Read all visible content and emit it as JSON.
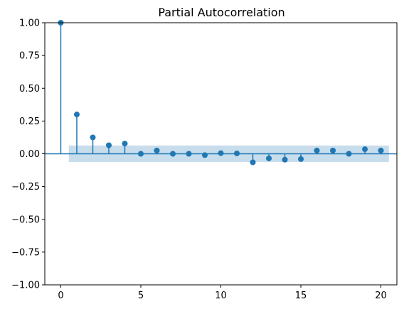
{
  "chart_data": {
    "type": "scatter",
    "subtype": "stem",
    "title": "Partial Autocorrelation",
    "xlabel": "",
    "ylabel": "",
    "xlim": [
      -0.999,
      20.999
    ],
    "ylim": [
      -1.0,
      1.0
    ],
    "grid": false,
    "x_ticks": [
      0,
      5,
      10,
      15,
      20
    ],
    "x_tick_labels": [
      "0",
      "5",
      "10",
      "15",
      "20"
    ],
    "y_ticks": [
      1.0,
      0.75,
      0.5,
      0.25,
      0.0,
      -0.25,
      -0.5,
      -0.75,
      -1.0
    ],
    "y_tick_labels": [
      "1.00",
      "0.75",
      "0.50",
      "0.25",
      "0.00",
      "−0.25",
      "−0.50",
      "−0.75",
      "−1.00"
    ],
    "confidence_band": {
      "x_range": [
        0.5,
        20.5
      ],
      "y_range": [
        -0.063,
        0.063
      ],
      "color": "#1f77b4",
      "opacity": 0.25
    },
    "series": [
      {
        "x": [
          0,
          1,
          2,
          3,
          4,
          5,
          6,
          7,
          8,
          9,
          10,
          11,
          12,
          13,
          14,
          15,
          16,
          17,
          18,
          19,
          20
        ],
        "values": [
          1.0,
          0.3,
          0.125,
          0.065,
          0.078,
          0.0,
          0.025,
          0.0,
          0.0,
          -0.01,
          0.005,
          0.003,
          -0.065,
          -0.035,
          -0.045,
          -0.04,
          0.025,
          0.025,
          0.0,
          0.035,
          0.025
        ]
      }
    ],
    "colors": {
      "series": "#1f77b4",
      "axis": "#000000"
    }
  }
}
